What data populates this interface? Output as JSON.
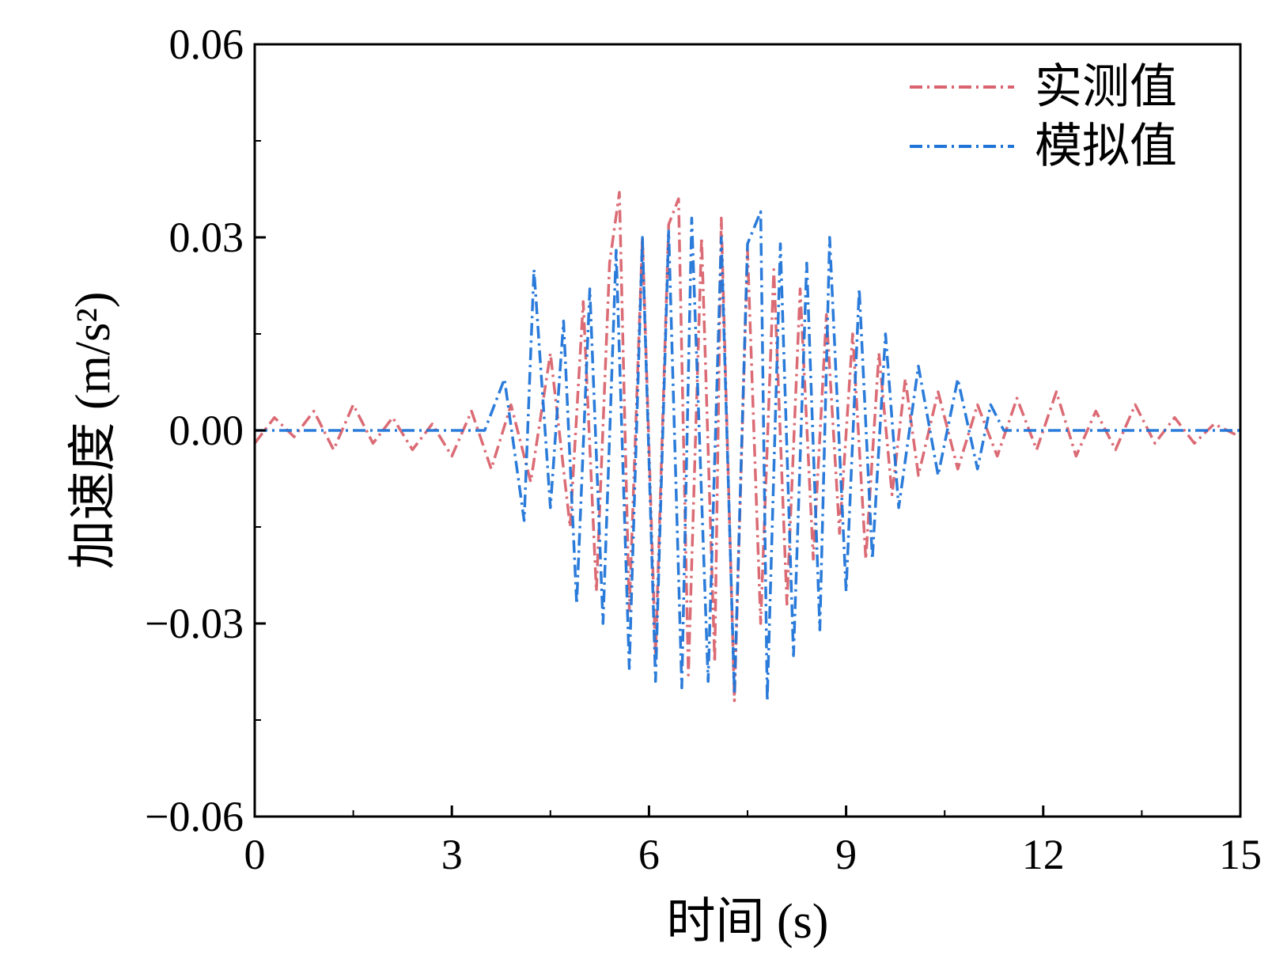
{
  "chart_data": {
    "type": "line",
    "title": "",
    "xlabel": "时间 (s)",
    "ylabel": "加速度 (m/s²)",
    "xlim": [
      0,
      15
    ],
    "ylim": [
      -0.06,
      0.06
    ],
    "x_ticks": [
      0,
      3,
      6,
      9,
      12,
      15
    ],
    "x_tick_labels": [
      "0",
      "3",
      "6",
      "9",
      "12",
      "15"
    ],
    "y_ticks": [
      -0.06,
      -0.03,
      0.0,
      0.03,
      0.06
    ],
    "y_tick_labels": [
      "−0.06",
      "−0.03",
      "0.00",
      "0.03",
      "0.06"
    ],
    "grid": false,
    "legend_position": "top-right",
    "series": [
      {
        "name": "实测值",
        "color": "#d9636e",
        "line_style": "dash-dot",
        "points": [
          [
            0.0,
            -0.002
          ],
          [
            0.3,
            0.002
          ],
          [
            0.6,
            -0.001
          ],
          [
            0.9,
            0.003
          ],
          [
            1.2,
            -0.003
          ],
          [
            1.5,
            0.004
          ],
          [
            1.8,
            -0.002
          ],
          [
            2.1,
            0.002
          ],
          [
            2.4,
            -0.003
          ],
          [
            2.7,
            0.001
          ],
          [
            3.0,
            -0.004
          ],
          [
            3.3,
            0.003
          ],
          [
            3.6,
            -0.006
          ],
          [
            3.9,
            0.004
          ],
          [
            4.2,
            -0.008
          ],
          [
            4.5,
            0.012
          ],
          [
            4.8,
            -0.015
          ],
          [
            5.0,
            0.02
          ],
          [
            5.2,
            -0.025
          ],
          [
            5.4,
            0.026
          ],
          [
            5.55,
            0.037
          ],
          [
            5.7,
            -0.028
          ],
          [
            5.9,
            0.03
          ],
          [
            6.1,
            -0.035
          ],
          [
            6.3,
            0.032
          ],
          [
            6.45,
            0.036
          ],
          [
            6.6,
            -0.038
          ],
          [
            6.8,
            0.03
          ],
          [
            7.0,
            -0.036
          ],
          [
            7.1,
            0.033
          ],
          [
            7.3,
            -0.042
          ],
          [
            7.5,
            0.028
          ],
          [
            7.7,
            -0.03
          ],
          [
            7.9,
            0.025
          ],
          [
            8.1,
            -0.027
          ],
          [
            8.3,
            0.022
          ],
          [
            8.5,
            -0.02
          ],
          [
            8.7,
            0.018
          ],
          [
            8.9,
            -0.016
          ],
          [
            9.1,
            0.015
          ],
          [
            9.3,
            -0.02
          ],
          [
            9.5,
            0.012
          ],
          [
            9.7,
            -0.01
          ],
          [
            9.9,
            0.008
          ],
          [
            10.1,
            -0.007
          ],
          [
            10.4,
            0.006
          ],
          [
            10.7,
            -0.006
          ],
          [
            11.0,
            0.004
          ],
          [
            11.3,
            -0.004
          ],
          [
            11.6,
            0.005
          ],
          [
            11.9,
            -0.003
          ],
          [
            12.2,
            0.006
          ],
          [
            12.5,
            -0.004
          ],
          [
            12.8,
            0.003
          ],
          [
            13.1,
            -0.003
          ],
          [
            13.4,
            0.004
          ],
          [
            13.7,
            -0.002
          ],
          [
            14.0,
            0.002
          ],
          [
            14.3,
            -0.002
          ],
          [
            14.6,
            0.001
          ],
          [
            15.0,
            -0.001
          ]
        ]
      },
      {
        "name": "模拟值",
        "color": "#1f74d8",
        "line_style": "dash-dot",
        "points": [
          [
            0.0,
            0.0
          ],
          [
            0.5,
            0.0
          ],
          [
            1.0,
            0.0
          ],
          [
            1.5,
            0.0
          ],
          [
            2.0,
            0.0
          ],
          [
            2.5,
            0.0
          ],
          [
            3.0,
            0.0
          ],
          [
            3.5,
            0.0
          ],
          [
            3.8,
            0.008
          ],
          [
            4.1,
            -0.014
          ],
          [
            4.25,
            0.025
          ],
          [
            4.5,
            -0.012
          ],
          [
            4.7,
            0.017
          ],
          [
            4.9,
            -0.027
          ],
          [
            5.1,
            0.022
          ],
          [
            5.3,
            -0.03
          ],
          [
            5.5,
            0.028
          ],
          [
            5.7,
            -0.037
          ],
          [
            5.9,
            0.03
          ],
          [
            6.1,
            -0.039
          ],
          [
            6.3,
            0.031
          ],
          [
            6.5,
            -0.04
          ],
          [
            6.65,
            0.033
          ],
          [
            6.9,
            -0.039
          ],
          [
            7.1,
            0.03
          ],
          [
            7.3,
            -0.041
          ],
          [
            7.5,
            0.029
          ],
          [
            7.7,
            0.034
          ],
          [
            7.8,
            -0.042
          ],
          [
            8.0,
            0.029
          ],
          [
            8.2,
            -0.035
          ],
          [
            8.4,
            0.026
          ],
          [
            8.6,
            -0.031
          ],
          [
            8.75,
            0.03
          ],
          [
            9.0,
            -0.025
          ],
          [
            9.2,
            0.022
          ],
          [
            9.4,
            -0.02
          ],
          [
            9.6,
            0.015
          ],
          [
            9.8,
            -0.012
          ],
          [
            10.1,
            0.01
          ],
          [
            10.4,
            -0.007
          ],
          [
            10.7,
            0.008
          ],
          [
            11.0,
            -0.006
          ],
          [
            11.2,
            0.004
          ],
          [
            11.4,
            0.0
          ],
          [
            12.0,
            0.0
          ],
          [
            12.5,
            0.0
          ],
          [
            13.0,
            0.0
          ],
          [
            13.5,
            0.0
          ],
          [
            14.0,
            0.0
          ],
          [
            14.5,
            0.0
          ],
          [
            15.0,
            0.0
          ]
        ]
      }
    ]
  }
}
